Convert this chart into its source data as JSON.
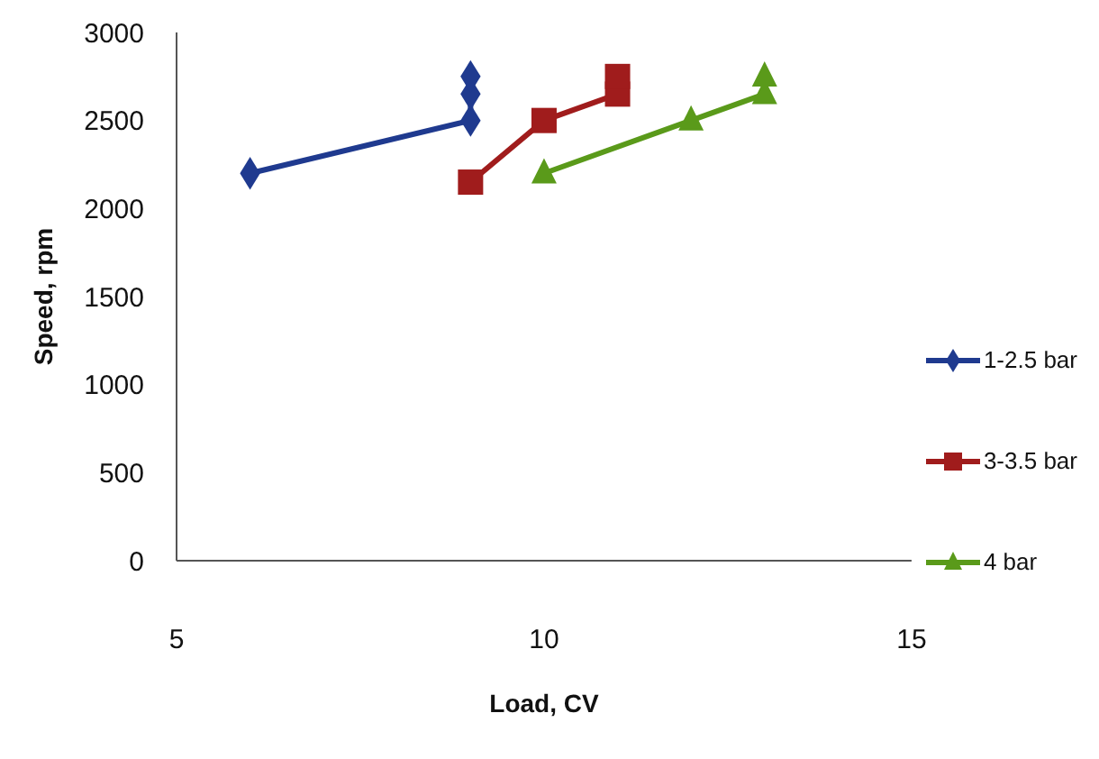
{
  "chart_data": {
    "type": "line",
    "xlabel": "Load, CV",
    "ylabel": "Speed, rpm",
    "xlim": [
      5,
      15
    ],
    "xticks": [
      5,
      10,
      15
    ],
    "ylim": [
      0,
      3000
    ],
    "yticks": [
      0,
      500,
      1000,
      1500,
      2000,
      2500,
      3000
    ],
    "grid": false,
    "legend": "right",
    "line_style": "solid",
    "series": [
      {
        "name": "1-2.5 bar",
        "color": "#1f3a8f",
        "marker": "diamond",
        "x": [
          6,
          9,
          9,
          9
        ],
        "values": [
          2200,
          2500,
          2650,
          2750
        ]
      },
      {
        "name": "3-3.5 bar",
        "color": "#a01c1c",
        "marker": "square",
        "x": [
          9,
          10,
          11,
          11
        ],
        "values": [
          2150,
          2500,
          2650,
          2750
        ]
      },
      {
        "name": "4 bar",
        "color": "#5a9a1a",
        "marker": "triangle",
        "x": [
          10,
          12,
          13,
          13
        ],
        "values": [
          2200,
          2500,
          2650,
          2750
        ]
      }
    ]
  }
}
